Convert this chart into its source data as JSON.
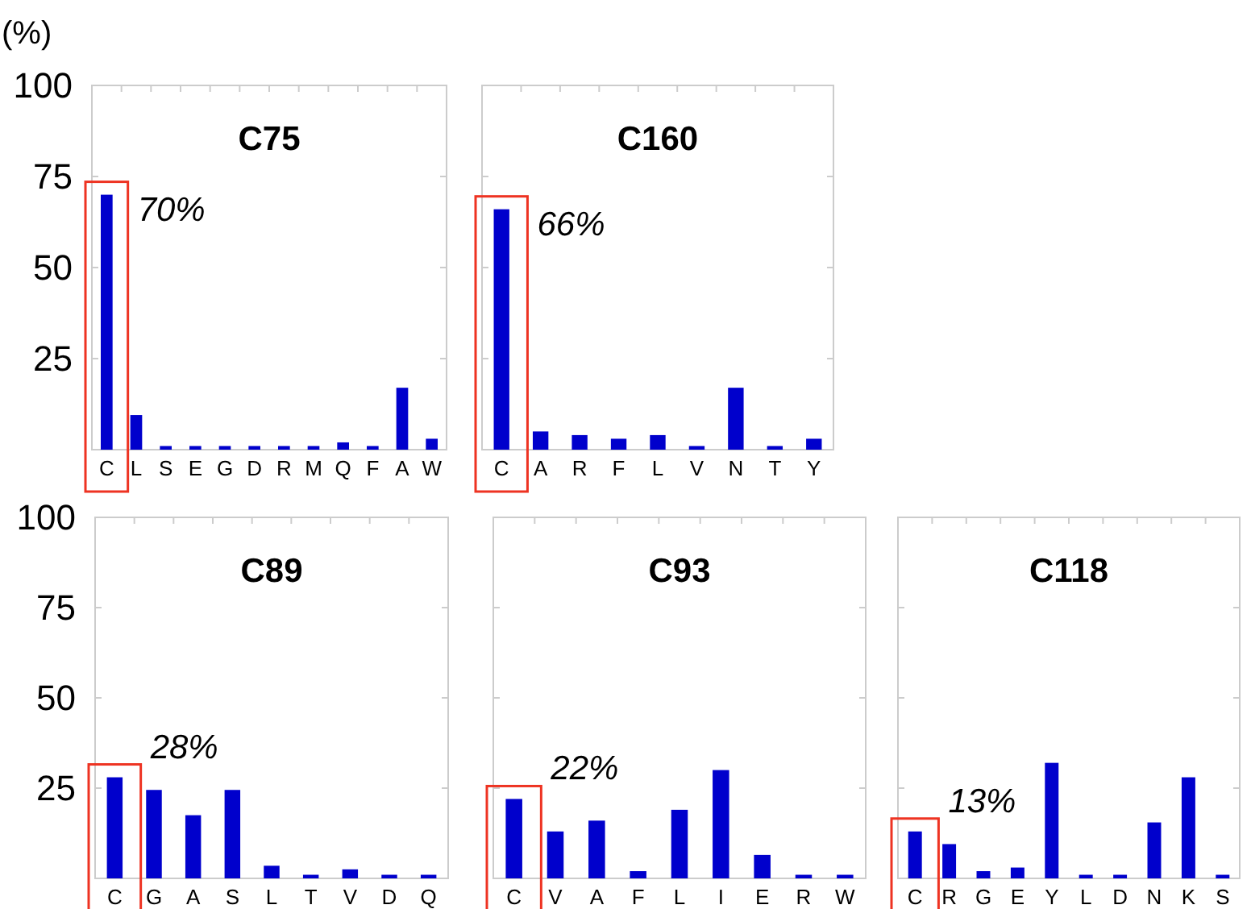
{
  "chart_data": [
    {
      "type": "bar",
      "title": "C75",
      "ylabel": "(%)",
      "categories": [
        "C",
        "L",
        "S",
        "E",
        "G",
        "D",
        "R",
        "M",
        "Q",
        "F",
        "A",
        "W"
      ],
      "values": [
        70,
        9.5,
        1,
        1,
        1,
        1,
        1,
        1,
        2,
        1,
        17,
        3
      ],
      "color": "#0000cc",
      "ylim": [
        0,
        100
      ],
      "yticks": [
        25,
        50,
        75,
        100
      ],
      "annotations": [
        {
          "text": "70%",
          "x": "C",
          "y": 70
        }
      ]
    },
    {
      "type": "bar",
      "title": "C160",
      "categories": [
        "C",
        "A",
        "R",
        "F",
        "L",
        "V",
        "N",
        "T",
        "Y"
      ],
      "values": [
        66,
        5,
        4,
        3,
        4,
        1,
        17,
        1,
        3
      ],
      "color": "#0000cc",
      "ylim": [
        0,
        100
      ],
      "yticks": [
        25,
        50,
        75,
        100
      ],
      "tick_labels": "x",
      "annotations": [
        {
          "text": "66%",
          "x": "C",
          "y": 66
        }
      ]
    },
    {
      "type": "bar",
      "title": "C89",
      "categories": [
        "C",
        "G",
        "A",
        "S",
        "L",
        "T",
        "V",
        "D",
        "Q"
      ],
      "values": [
        28,
        24.5,
        17.5,
        24.5,
        3.5,
        1,
        2.5,
        1,
        1
      ],
      "color": "#0000cc",
      "ylim": [
        0,
        100
      ],
      "yticks": [
        25,
        50,
        75,
        100
      ],
      "annotations": [
        {
          "text": "28%",
          "x": "C",
          "y": 28
        }
      ]
    },
    {
      "type": "bar",
      "title": "C93",
      "categories": [
        "C",
        "V",
        "A",
        "F",
        "L",
        "I",
        "E",
        "R",
        "W"
      ],
      "values": [
        22,
        13,
        16,
        2,
        19,
        30,
        6.5,
        1,
        1
      ],
      "color": "#0000cc",
      "ylim": [
        0,
        100
      ],
      "yticks": [
        25,
        50,
        75,
        100
      ],
      "tick_labels": "x",
      "annotations": [
        {
          "text": "22%",
          "x": "C",
          "y": 22
        }
      ]
    },
    {
      "type": "bar",
      "title": "C118",
      "categories": [
        "C",
        "R",
        "G",
        "E",
        "Y",
        "L",
        "D",
        "N",
        "K",
        "S"
      ],
      "values": [
        13,
        9.5,
        2,
        3,
        32,
        1,
        1,
        15.5,
        28,
        1
      ],
      "color": "#0000cc",
      "ylim": [
        0,
        100
      ],
      "yticks": [
        25,
        50,
        75,
        100
      ],
      "tick_labels": "x",
      "annotations": [
        {
          "text": "13%",
          "x": "C",
          "y": 13
        }
      ]
    }
  ]
}
